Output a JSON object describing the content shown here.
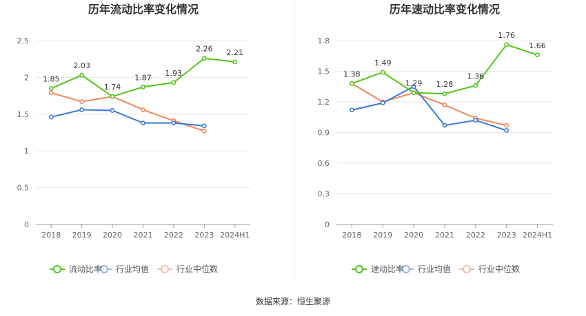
{
  "source": "数据来源：恒生聚源",
  "chart_data": [
    {
      "type": "line",
      "title": "历年流动比率变化情况",
      "categories": [
        "2018",
        "2019",
        "2020",
        "2021",
        "2022",
        "2023",
        "2024H1"
      ],
      "ylim": [
        0,
        2.5
      ],
      "yticks": [
        "0",
        "0.5",
        "1",
        "1.5",
        "2",
        "2.5"
      ],
      "grid": true,
      "legend_position": "bottom",
      "series": [
        {
          "name": "流动比率",
          "color": "#52c41a",
          "values": [
            1.85,
            2.03,
            1.74,
            1.87,
            1.93,
            2.26,
            2.21
          ],
          "labels": [
            "1.85",
            "2.03",
            "1.74",
            "1.87",
            "1.93",
            "2.26",
            "2.21"
          ]
        },
        {
          "name": "行业均值",
          "color": "#3c78d8",
          "values": [
            1.46,
            1.56,
            1.55,
            1.38,
            1.38,
            1.34,
            null
          ]
        },
        {
          "name": "行业中位数",
          "color": "#f0875a",
          "values": [
            1.79,
            1.67,
            1.74,
            1.56,
            1.41,
            1.27,
            null
          ]
        }
      ]
    },
    {
      "type": "line",
      "title": "历年速动比率变化情况",
      "categories": [
        "2018",
        "2019",
        "2020",
        "2021",
        "2022",
        "2023",
        "2024H1"
      ],
      "ylim": [
        0,
        1.8
      ],
      "yticks": [
        "0",
        "0.3",
        "0.6",
        "0.9",
        "1.2",
        "1.5",
        "1.8"
      ],
      "grid": true,
      "legend_position": "bottom",
      "series": [
        {
          "name": "速动比率",
          "color": "#52c41a",
          "values": [
            1.38,
            1.49,
            1.29,
            1.28,
            1.36,
            1.76,
            1.66
          ],
          "labels": [
            "1.38",
            "1.49",
            "1.29",
            "1.28",
            "1.36",
            "1.76",
            "1.66"
          ]
        },
        {
          "name": "行业均值",
          "color": "#3c78d8",
          "values": [
            1.12,
            1.19,
            1.35,
            0.97,
            1.02,
            0.92,
            null
          ]
        },
        {
          "name": "行业中位数",
          "color": "#f0875a",
          "values": [
            1.38,
            1.2,
            1.29,
            1.17,
            1.04,
            0.97,
            null
          ]
        }
      ]
    }
  ]
}
